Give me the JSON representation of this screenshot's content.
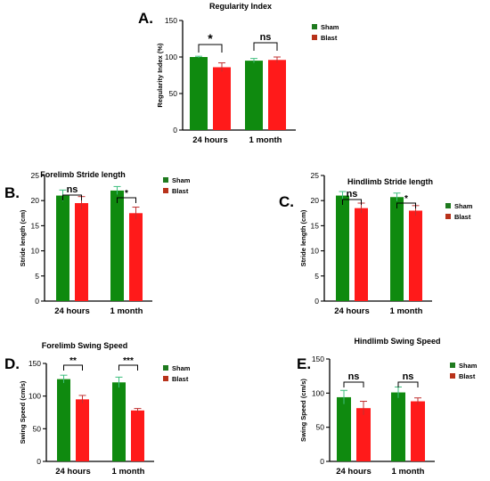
{
  "colors": {
    "sham": "#0f8a0f",
    "blast": "#ff1a1a",
    "sham_legend": "#1e7a1e",
    "blast_legend": "#b8321a"
  },
  "chart_data": [
    {
      "panel": "A.",
      "type": "bar",
      "title": "Regularity Index",
      "ylabel": "Regularity Index (%)",
      "categories": [
        "24 hours",
        "1 month"
      ],
      "ylim": [
        0,
        150
      ],
      "yticks": [
        0,
        50,
        100,
        150
      ],
      "series": [
        {
          "name": "Sham",
          "values": [
            100,
            95
          ],
          "errors": [
            1,
            3
          ]
        },
        {
          "name": "Blast",
          "values": [
            86,
            96
          ],
          "errors": [
            6,
            4
          ]
        }
      ],
      "significance": [
        "*",
        "ns"
      ],
      "legend": "right"
    },
    {
      "panel": "B.",
      "type": "bar",
      "title": "Forelimb Stride length",
      "ylabel": "Stride length (cm)",
      "categories": [
        "24 hours",
        "1 month"
      ],
      "ylim": [
        0,
        25
      ],
      "yticks": [
        0,
        5,
        10,
        15,
        20,
        25
      ],
      "series": [
        {
          "name": "Sham",
          "values": [
            21,
            22
          ],
          "errors": [
            1.1,
            0.8
          ]
        },
        {
          "name": "Blast",
          "values": [
            19.5,
            17.5
          ],
          "errors": [
            1.3,
            1.2
          ]
        }
      ],
      "significance": [
        "ns",
        "*"
      ],
      "legend": "right"
    },
    {
      "panel": "C.",
      "type": "bar",
      "title": "Hindlimb Stride length",
      "ylabel": "Stride length (cm)",
      "categories": [
        "24 hours",
        "1 month"
      ],
      "ylim": [
        0,
        25
      ],
      "yticks": [
        0,
        5,
        10,
        15,
        20,
        25
      ],
      "series": [
        {
          "name": "Sham",
          "values": [
            21,
            20.7
          ],
          "errors": [
            0.8,
            0.8
          ]
        },
        {
          "name": "Blast",
          "values": [
            18.5,
            18
          ],
          "errors": [
            1,
            1
          ]
        }
      ],
      "significance": [
        "ns",
        "*"
      ],
      "legend": "right"
    },
    {
      "panel": "D.",
      "type": "bar",
      "title": "Forelimb Swing Speed",
      "ylabel": "Swing Speed (cm/s)",
      "categories": [
        "24 hours",
        "1 month"
      ],
      "ylim": [
        0,
        150
      ],
      "yticks": [
        0,
        50,
        100,
        150
      ],
      "series": [
        {
          "name": "Sham",
          "values": [
            126,
            121
          ],
          "errors": [
            6,
            8
          ]
        },
        {
          "name": "Blast",
          "values": [
            95,
            78
          ],
          "errors": [
            6,
            3
          ]
        }
      ],
      "significance": [
        "**",
        "***"
      ],
      "legend": "right"
    },
    {
      "panel": "E.",
      "type": "bar",
      "title": "Hindlimb Swing Speed",
      "ylabel": "Swing Speed (cm/s)",
      "categories": [
        "24 hours",
        "1 month"
      ],
      "ylim": [
        0,
        150
      ],
      "yticks": [
        0,
        50,
        100,
        150
      ],
      "series": [
        {
          "name": "Sham",
          "values": [
            94,
            101
          ],
          "errors": [
            10,
            8
          ]
        },
        {
          "name": "Blast",
          "values": [
            78,
            88
          ],
          "errors": [
            10,
            5
          ]
        }
      ],
      "significance": [
        "ns",
        "ns"
      ],
      "legend": "right"
    }
  ]
}
